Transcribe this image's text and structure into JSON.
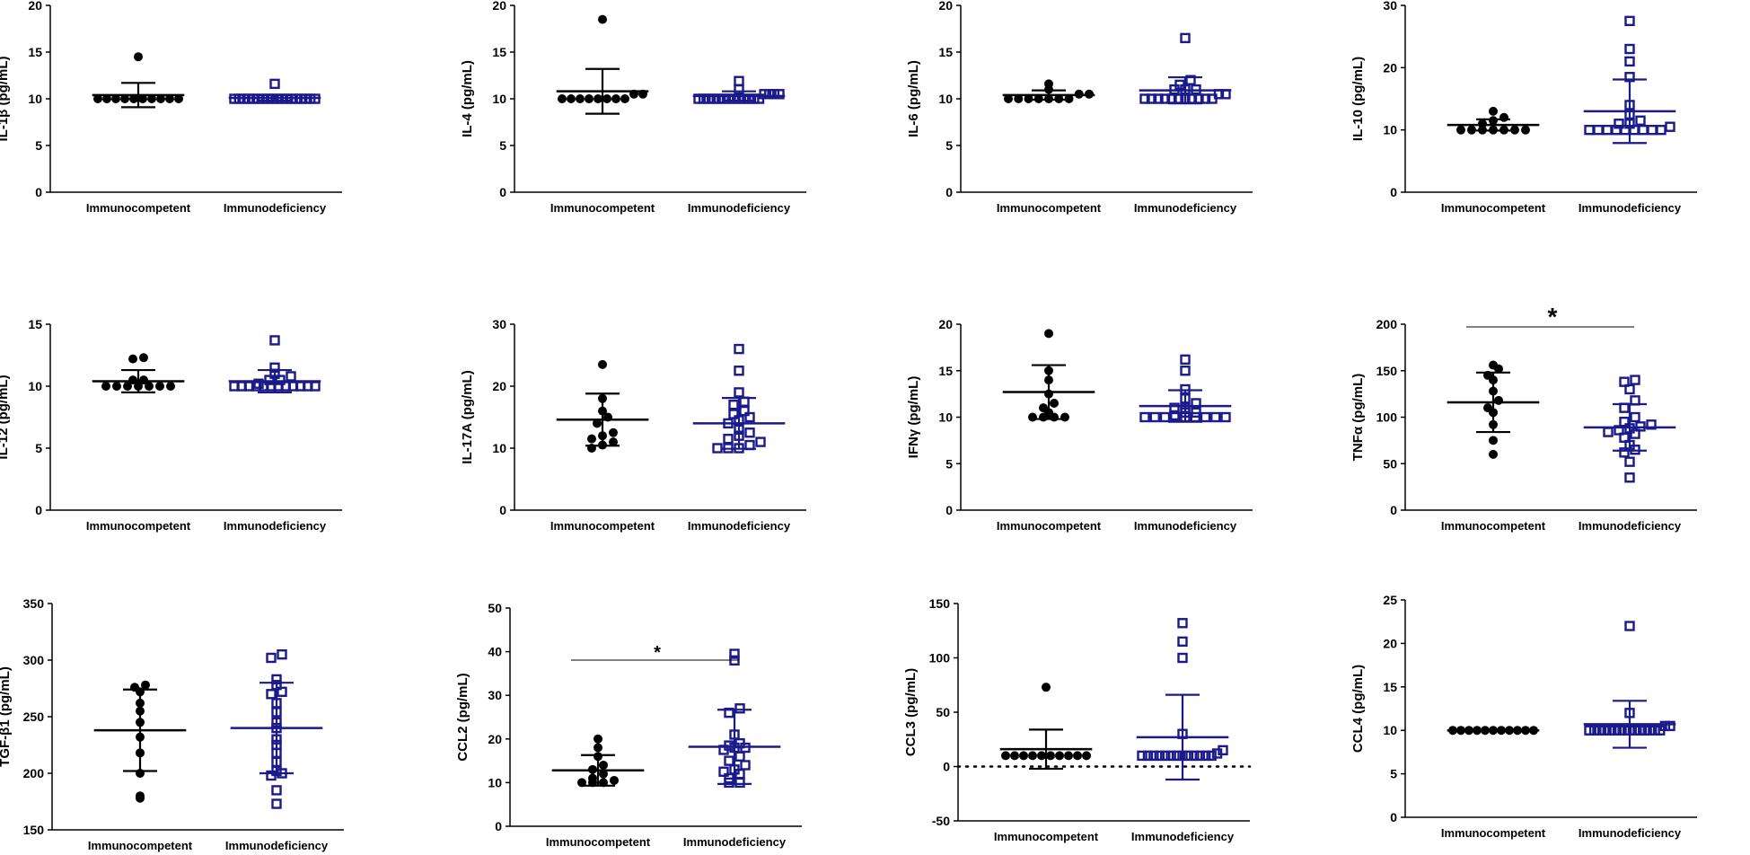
{
  "figure": {
    "groups": [
      "Immunocompetent",
      "Immunodeficiency"
    ],
    "colors": {
      "competent": "#000000",
      "deficient": "#1a1a8c"
    }
  },
  "chart_data": [
    {
      "type": "scatter",
      "id": "il1b",
      "ylabel": "IL-1β (pg/mL)",
      "ylim": [
        0,
        20
      ],
      "yticks": [
        0,
        5,
        10,
        15,
        20
      ],
      "categories": [
        "Immunocompetent",
        "Immunodeficiency"
      ],
      "series": [
        {
          "name": "Immunocompetent",
          "mean": 10.4,
          "sd": 1.3,
          "values": [
            14.5,
            10,
            10,
            10,
            10,
            10,
            10,
            10,
            10,
            10,
            10
          ]
        },
        {
          "name": "Immunodeficiency",
          "mean": 10.1,
          "sd": 0.3,
          "values": [
            11.6,
            10,
            10,
            10,
            10,
            10,
            10,
            10,
            10,
            10,
            10,
            10,
            10,
            10,
            10,
            10,
            10,
            10,
            10
          ]
        }
      ]
    },
    {
      "type": "scatter",
      "id": "il4",
      "ylabel": "IL-4 (pg/mL)",
      "ylim": [
        0,
        20
      ],
      "yticks": [
        0,
        5,
        10,
        15,
        20
      ],
      "categories": [
        "Immunocompetent",
        "Immunodeficiency"
      ],
      "series": [
        {
          "name": "Immunocompetent",
          "mean": 10.8,
          "sd": 2.4,
          "values": [
            18.5,
            10.5,
            10.5,
            10,
            10,
            10,
            10,
            10,
            10,
            10,
            10
          ]
        },
        {
          "name": "Immunodeficiency",
          "mean": 10.3,
          "sd": 0.5,
          "values": [
            11.9,
            11,
            10.5,
            10.5,
            10.5,
            10.5,
            10,
            10,
            10,
            10,
            10,
            10,
            10,
            10,
            10,
            10,
            10,
            10,
            10
          ]
        }
      ]
    },
    {
      "type": "scatter",
      "id": "il6",
      "ylabel": "IL-6 (pg/mL)",
      "ylim": [
        0,
        20
      ],
      "yticks": [
        0,
        5,
        10,
        15,
        20
      ],
      "categories": [
        "Immunocompetent",
        "Immunodeficiency"
      ],
      "series": [
        {
          "name": "Immunocompetent",
          "mean": 10.4,
          "sd": 0.5,
          "values": [
            11.6,
            11,
            10.5,
            10.5,
            10,
            10,
            10,
            10,
            10,
            10,
            10
          ]
        },
        {
          "name": "Immunodeficiency",
          "mean": 10.9,
          "sd": 1.4,
          "values": [
            16.5,
            12,
            11.5,
            11,
            11,
            11,
            10.5,
            10.5,
            10,
            10,
            10,
            10,
            10,
            10,
            10,
            10,
            10,
            10,
            10
          ]
        }
      ]
    },
    {
      "type": "scatter",
      "id": "il10",
      "ylabel": "IL-10 (pg/mL)",
      "ylim": [
        0,
        30
      ],
      "yticks": [
        0,
        10,
        20,
        30
      ],
      "categories": [
        "Immunocompetent",
        "Immunodeficiency"
      ],
      "series": [
        {
          "name": "Immunocompetent",
          "mean": 10.8,
          "sd": 0.9,
          "values": [
            13,
            12,
            11.5,
            11,
            10,
            10,
            10,
            10,
            10,
            10,
            10
          ]
        },
        {
          "name": "Immunodeficiency",
          "mean": 13,
          "sd": 5.1,
          "values": [
            27.5,
            23,
            21,
            18.5,
            14,
            12.5,
            11.5,
            11,
            11,
            10.5,
            10,
            10,
            10,
            10,
            10,
            10,
            10,
            10,
            10
          ]
        }
      ]
    },
    {
      "type": "scatter",
      "id": "il12",
      "ylabel": "IL-12 (pg/mL)",
      "ylim": [
        0,
        15
      ],
      "yticks": [
        0,
        5,
        10,
        15
      ],
      "categories": [
        "Immunocompetent",
        "Immunodeficiency"
      ],
      "series": [
        {
          "name": "Immunocompetent",
          "mean": 10.4,
          "sd": 0.9,
          "values": [
            12.3,
            12.2,
            10.5,
            10.5,
            10,
            10,
            10,
            10,
            10,
            10,
            10
          ]
        },
        {
          "name": "Immunodeficiency",
          "mean": 10.4,
          "sd": 0.9,
          "values": [
            13.7,
            11.5,
            11,
            10.8,
            10.5,
            10.5,
            10.2,
            10,
            10,
            10,
            10,
            10,
            10,
            10,
            10,
            10,
            10,
            10,
            10
          ]
        }
      ]
    },
    {
      "type": "scatter",
      "id": "il17a",
      "ylabel": "IL-17A (pg/mL)",
      "ylim": [
        0,
        30
      ],
      "yticks": [
        0,
        10,
        20,
        30
      ],
      "categories": [
        "Immunocompetent",
        "Immunodeficiency"
      ],
      "series": [
        {
          "name": "Immunocompetent",
          "mean": 14.6,
          "sd": 4.2,
          "values": [
            23.5,
            18,
            16,
            15,
            14,
            12.5,
            12,
            11.5,
            11,
            10.5,
            10
          ]
        },
        {
          "name": "Immunodeficiency",
          "mean": 14,
          "sd": 4.1,
          "values": [
            26,
            22.5,
            19,
            17.5,
            17,
            16,
            15.5,
            15,
            14.5,
            14,
            13,
            12.5,
            12,
            11.5,
            11,
            10.5,
            10,
            10,
            10
          ]
        }
      ]
    },
    {
      "type": "scatter",
      "id": "ifng",
      "ylabel": "IFNγ (pg/mL)",
      "ylim": [
        0,
        20
      ],
      "yticks": [
        0,
        5,
        10,
        15,
        20
      ],
      "categories": [
        "Immunocompetent",
        "Immunodeficiency"
      ],
      "series": [
        {
          "name": "Immunocompetent",
          "mean": 12.7,
          "sd": 2.9,
          "values": [
            19,
            15,
            14,
            12.5,
            11.5,
            11,
            10.5,
            10,
            10,
            10,
            10
          ]
        },
        {
          "name": "Immunodeficiency",
          "mean": 11.2,
          "sd": 1.7,
          "values": [
            16.2,
            15,
            13,
            12,
            11.5,
            11,
            11,
            10.5,
            10.5,
            10.2,
            10,
            10,
            10,
            10,
            10,
            10,
            10,
            10,
            10
          ]
        }
      ]
    },
    {
      "type": "scatter",
      "id": "tnfa",
      "ylabel": "TNFα (pg/mL)",
      "ylim": [
        0,
        200
      ],
      "yticks": [
        0,
        50,
        100,
        150,
        200
      ],
      "categories": [
        "Immunocompetent",
        "Immunodeficiency"
      ],
      "significance": "*",
      "series": [
        {
          "name": "Immunocompetent",
          "mean": 116,
          "sd": 32,
          "values": [
            156,
            152,
            145,
            140,
            128,
            118,
            110,
            105,
            92,
            75,
            60
          ]
        },
        {
          "name": "Immunodeficiency",
          "mean": 89,
          "sd": 25,
          "values": [
            140,
            138,
            130,
            118,
            110,
            100,
            95,
            92,
            90,
            88,
            86,
            84,
            82,
            78,
            70,
            65,
            62,
            52,
            35
          ]
        }
      ]
    },
    {
      "type": "scatter",
      "id": "tgfb1",
      "ylabel": "TGF-β1 (pg/mL)",
      "ylim": [
        150,
        350
      ],
      "yticks": [
        150,
        200,
        250,
        300,
        350
      ],
      "categories": [
        "Immunocompetent",
        "Immunodeficiency"
      ],
      "series": [
        {
          "name": "Immunocompetent",
          "mean": 238,
          "sd": 36,
          "values": [
            278,
            276,
            272,
            262,
            255,
            245,
            232,
            218,
            200,
            180,
            178
          ]
        },
        {
          "name": "Immunodeficiency",
          "mean": 240,
          "sd": 40,
          "values": [
            305,
            302,
            283,
            278,
            272,
            270,
            262,
            254,
            245,
            240,
            230,
            225,
            218,
            210,
            202,
            200,
            198,
            185,
            173
          ]
        }
      ]
    },
    {
      "type": "scatter",
      "id": "ccl2",
      "ylabel": "CCL2 (pg/mL)",
      "ylim": [
        0,
        50
      ],
      "yticks": [
        0,
        10,
        20,
        30,
        40,
        50
      ],
      "categories": [
        "Immunocompetent",
        "Immunodeficiency"
      ],
      "significance": "*",
      "series": [
        {
          "name": "Immunocompetent",
          "mean": 12.8,
          "sd": 3.5,
          "values": [
            20,
            18,
            16,
            14,
            13,
            12,
            11,
            10.5,
            10,
            10,
            10
          ]
        },
        {
          "name": "Immunodeficiency",
          "mean": 18.2,
          "sd": 8.5,
          "values": [
            39.5,
            38,
            27,
            26,
            21,
            19,
            18.5,
            18,
            18,
            17.5,
            16,
            15,
            14,
            13,
            12.5,
            12,
            11,
            10,
            10
          ]
        }
      ]
    },
    {
      "type": "scatter",
      "id": "ccl3",
      "ylabel": "CCL3 (pg/mL)",
      "ylim": [
        -50,
        150
      ],
      "yticks": [
        -50,
        0,
        50,
        100,
        150
      ],
      "categories": [
        "Immunocompetent",
        "Immunodeficiency"
      ],
      "reference_line": 0,
      "series": [
        {
          "name": "Immunocompetent",
          "mean": 16,
          "sd": 18,
          "values": [
            73,
            10,
            10,
            10,
            10,
            10,
            10,
            10,
            10,
            10,
            10
          ]
        },
        {
          "name": "Immunodeficiency",
          "mean": 27,
          "sd": 39,
          "values": [
            132,
            115,
            100,
            30,
            15,
            12,
            10,
            10,
            10,
            10,
            10,
            10,
            10,
            10,
            10,
            10,
            10,
            10,
            10
          ]
        }
      ]
    },
    {
      "type": "scatter",
      "id": "ccl4",
      "ylabel": "CCL4 (pg/mL)",
      "ylim": [
        0,
        25
      ],
      "yticks": [
        0,
        5,
        10,
        15,
        20,
        25
      ],
      "categories": [
        "Immunocompetent",
        "Immunodeficiency"
      ],
      "series": [
        {
          "name": "Immunocompetent",
          "mean": 10,
          "sd": 0,
          "values": [
            10,
            10,
            10,
            10,
            10,
            10,
            10,
            10,
            10,
            10,
            10
          ]
        },
        {
          "name": "Immunodeficiency",
          "mean": 10.7,
          "sd": 2.7,
          "values": [
            22,
            12,
            10.5,
            10.5,
            10,
            10,
            10,
            10,
            10,
            10,
            10,
            10,
            10,
            10,
            10,
            10,
            10,
            10,
            10
          ]
        }
      ]
    }
  ]
}
